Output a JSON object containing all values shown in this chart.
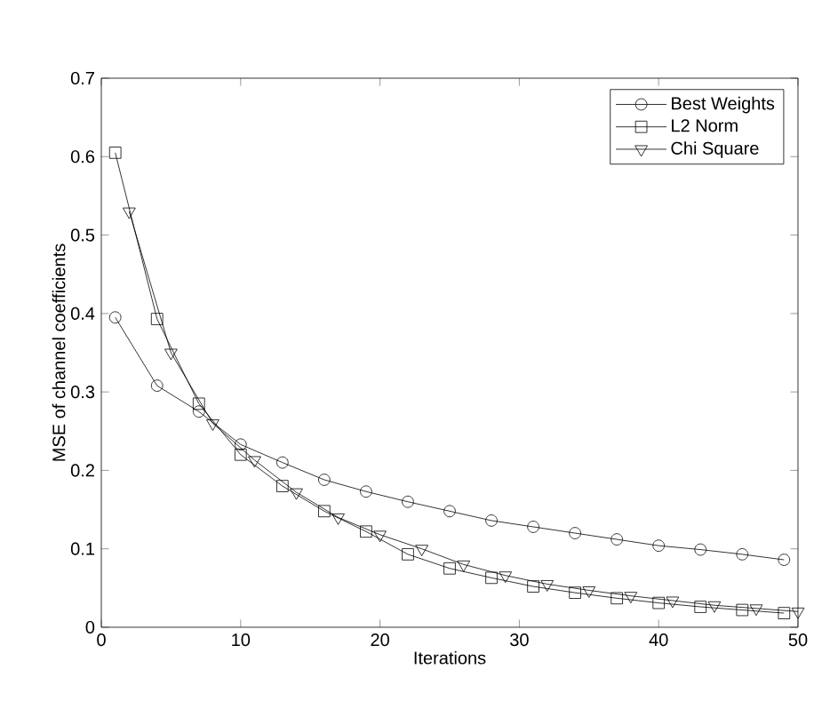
{
  "chart_data": {
    "type": "line",
    "xlabel": "Iterations",
    "ylabel": "MSE of channel coefficients",
    "xlim": [
      0,
      50
    ],
    "ylim": [
      0,
      0.7
    ],
    "xticks": [
      0,
      10,
      20,
      30,
      40,
      50
    ],
    "yticks": [
      0,
      0.1,
      0.2,
      0.3,
      0.4,
      0.5,
      0.6,
      0.7
    ],
    "grid": false,
    "legend": "top right",
    "line_style": "solid",
    "series": [
      {
        "name": "Best Weights",
        "color": "#000000",
        "marker": "circle",
        "x": [
          1,
          4,
          7,
          10,
          13,
          16,
          19,
          22,
          25,
          28,
          31,
          34,
          37,
          40,
          43,
          46,
          49
        ],
        "values": [
          0.395,
          0.308,
          0.275,
          0.233,
          0.21,
          0.188,
          0.173,
          0.16,
          0.148,
          0.136,
          0.128,
          0.12,
          0.112,
          0.104,
          0.099,
          0.093,
          0.086
        ]
      },
      {
        "name": "L2 Norm",
        "color": "#000000",
        "marker": "square",
        "x": [
          1,
          4,
          7,
          10,
          13,
          16,
          19,
          22,
          25,
          28,
          31,
          34,
          37,
          40,
          43,
          46,
          49
        ],
        "values": [
          0.605,
          0.393,
          0.285,
          0.22,
          0.18,
          0.148,
          0.122,
          0.093,
          0.075,
          0.063,
          0.052,
          0.044,
          0.037,
          0.031,
          0.026,
          0.022,
          0.018
        ]
      },
      {
        "name": "Chi Square",
        "color": "#000000",
        "marker": "triangle",
        "x": [
          2,
          5,
          8,
          11,
          14,
          17,
          20,
          23,
          26,
          29,
          32,
          35,
          38,
          41,
          44,
          47,
          50
        ],
        "values": [
          0.53,
          0.35,
          0.26,
          0.213,
          0.172,
          0.14,
          0.118,
          0.1,
          0.08,
          0.066,
          0.055,
          0.047,
          0.04,
          0.034,
          0.028,
          0.024,
          0.02
        ]
      }
    ]
  }
}
